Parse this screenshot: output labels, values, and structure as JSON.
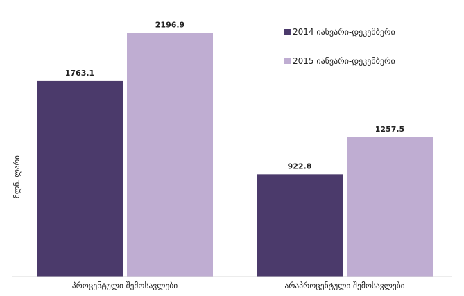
{
  "chart_data": {
    "type": "bar",
    "categories": [
      "პროცენტული შემოსავლები",
      "არაპროცენტული შემოსავლები"
    ],
    "series": [
      {
        "name": "2014 იანვარი-დეკემბერი",
        "color": "#4b3a6b",
        "values": [
          1763.1,
          922.8
        ]
      },
      {
        "name": "2015 იანვარი-დეკემბერი",
        "color": "#bfadd2",
        "values": [
          2196.9,
          1257.5
        ]
      }
    ],
    "value_labels": [
      [
        "1763.1",
        "922.8"
      ],
      [
        "2196.9",
        "1257.5"
      ]
    ],
    "ylabel": "მლნ. ლარი",
    "ylim": [
      0,
      2200
    ],
    "grid": false,
    "legend_position": "top-right"
  }
}
